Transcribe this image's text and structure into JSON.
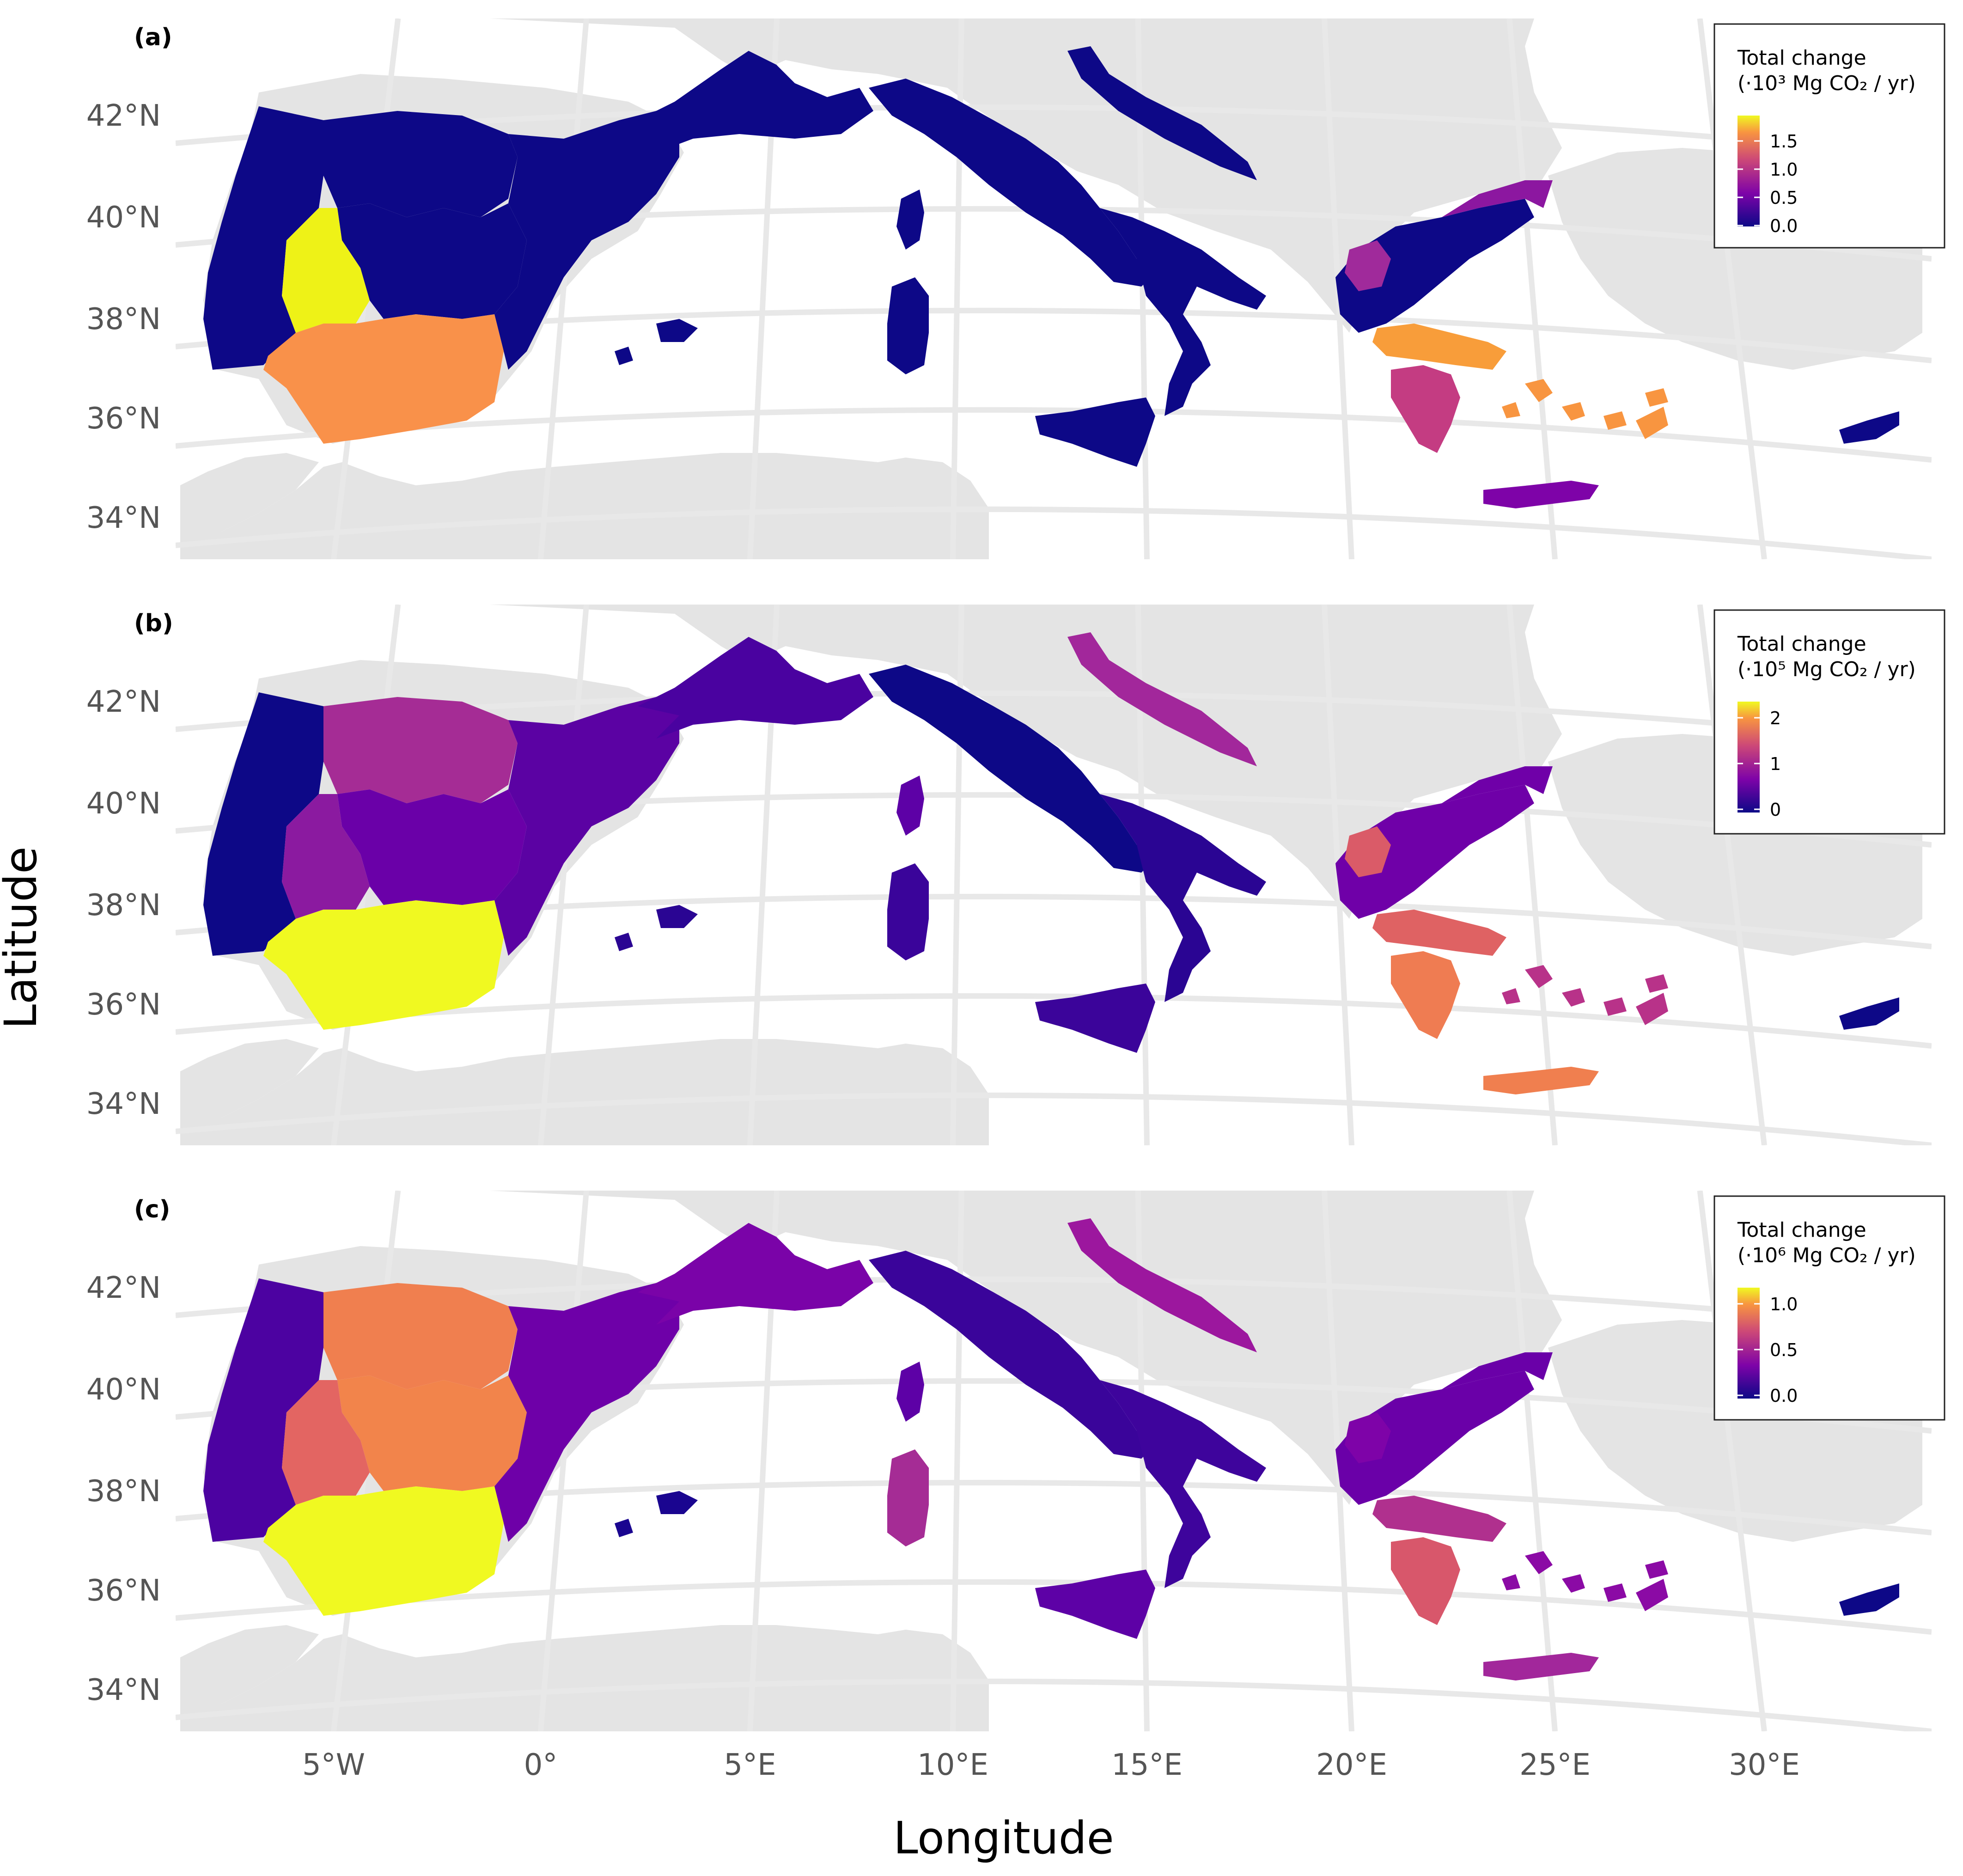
{
  "axes": {
    "x_title": "Longitude",
    "y_title": "Latitude",
    "lat_labels": [
      "42°N",
      "40°N",
      "38°N",
      "36°N",
      "34°N"
    ],
    "lon_labels": [
      "5°W",
      "0°",
      "5°E",
      "10°E",
      "15°E",
      "20°E",
      "25°E",
      "30°E"
    ]
  },
  "colors": {
    "background_land": "#e4e4e4",
    "graticule": "#e8e8e8",
    "palette": [
      "#0d0887",
      "#7e03a8",
      "#cc4778",
      "#f89540",
      "#f0f921"
    ]
  },
  "panels": [
    {
      "letter": "(a)",
      "legend_title_1": "Total change",
      "legend_title_2": "(·10³ Mg CO₂ / yr)",
      "legend_ticks": [
        "1.5",
        "1.0",
        "0.5",
        "0.0"
      ],
      "regions": {
        "iberia_north": "#0d0887",
        "iberia_west": "#0d0887",
        "iberia_center": "#0d0887",
        "iberia_east": "#0d0887",
        "extremadura": "#eef217",
        "andalusia": "#f9914a",
        "france": "#0d0887",
        "italy_north": "#0d0887",
        "italy_south": "#0d0887",
        "sicily": "#0d0887",
        "sardinia": "#0d0887",
        "corsica": "#0d0887",
        "croatia": "#0d0887",
        "greece_north": "#0d0887",
        "greece_thrace": "#8c17a0",
        "greece_thessaly": "#a02a9b",
        "greece_central": "#f89d3a",
        "peloponnese": "#c43c82",
        "crete": "#7e03a8",
        "aegean": "#f89540",
        "cyprus": "#0d0887",
        "balearics": "#0d0887"
      }
    },
    {
      "letter": "(b)",
      "legend_title_1": "Total change",
      "legend_title_2": "(·10⁵ Mg CO₂ / yr)",
      "legend_ticks": [
        "2",
        "1",
        "0"
      ],
      "regions": {
        "iberia_north": "#a52c95",
        "iberia_west": "#0d0887",
        "iberia_center": "#6a00a8",
        "iberia_east": "#5b02a3",
        "extremadura": "#8b1aa0",
        "andalusia": "#f0f921",
        "france": "#4a02a0",
        "italy_north": "#0d0887",
        "italy_south": "#2a0593",
        "sicily": "#3b049a",
        "sardinia": "#3a049a",
        "corsica": "#5d01a6",
        "croatia": "#a2279b",
        "greece_north": "#6f00a8",
        "greece_thrace": "#6f00a8",
        "greece_thessaly": "#da5b68",
        "greece_central": "#df6263",
        "peloponnese": "#ef7c52",
        "crete": "#f07f4f",
        "aegean": "#b83289",
        "cyprus": "#0d0887",
        "balearics": "#2a0593"
      }
    },
    {
      "letter": "(c)",
      "legend_title_1": "Total change",
      "legend_title_2": "(·10⁶ Mg CO₂ / yr)",
      "legend_ticks": [
        "1.0",
        "0.5",
        "0.0"
      ],
      "regions": {
        "iberia_north": "#f07f4f",
        "iberia_west": "#4c02a1",
        "iberia_center": "#f2844b",
        "iberia_east": "#6e00a8",
        "extremadura": "#e36562",
        "andalusia": "#f0f921",
        "france": "#7a03a8",
        "italy_north": "#3a049a",
        "italy_south": "#3e049c",
        "sicily": "#5d01a6",
        "sardinia": "#a52c95",
        "corsica": "#5d01a6",
        "croatia": "#9c179e",
        "greece_north": "#6a00a8",
        "greece_thrace": "#6a00a8",
        "greece_thessaly": "#7e03a8",
        "greece_central": "#b0308e",
        "peloponnese": "#d8576b",
        "crete": "#a2279b",
        "aegean": "#8b0aa5",
        "cyprus": "#0d0887",
        "balearics": "#1a0590"
      }
    }
  ]
}
